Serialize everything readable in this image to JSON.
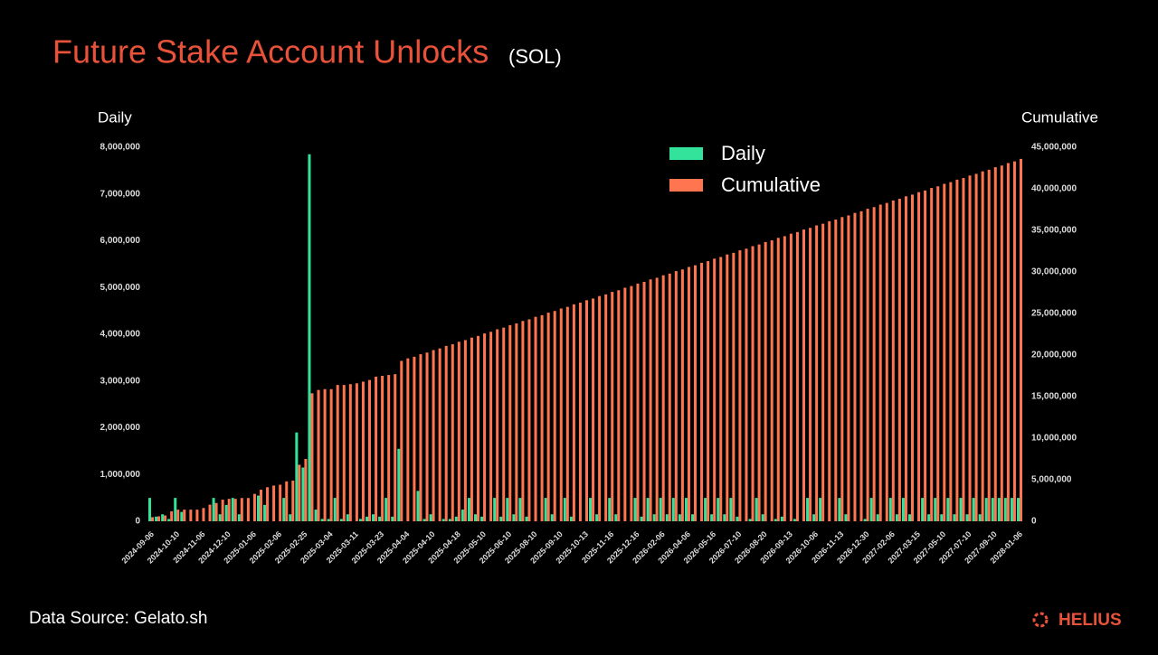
{
  "chart_data": {
    "type": "bar",
    "title": "Future Stake Account Unlocks",
    "subtitle": "(SOL)",
    "y_label": "Daily",
    "y2_label": "Cumulative",
    "source": "Data Source: Gelato.sh",
    "brand": "HELIUS",
    "categories": [
      "2024-09-06",
      null,
      null,
      null,
      "2024-10-10",
      null,
      null,
      null,
      "2024-11-06",
      null,
      null,
      null,
      "2024-12-10",
      null,
      null,
      null,
      "2025-01-06",
      null,
      null,
      null,
      "2025-02-06",
      null,
      null,
      null,
      "2025-02-25",
      null,
      null,
      null,
      "2025-03-04",
      null,
      null,
      null,
      "2025-03-11",
      null,
      null,
      null,
      "2025-03-23",
      null,
      null,
      null,
      "2025-04-04",
      null,
      null,
      null,
      "2025-04-10",
      null,
      null,
      null,
      "2025-04-18",
      null,
      null,
      null,
      "2025-05-10",
      null,
      null,
      null,
      "2025-06-10",
      null,
      null,
      null,
      "2025-08-10",
      null,
      null,
      null,
      "2025-09-10",
      null,
      null,
      null,
      "2025-10-13",
      null,
      null,
      null,
      "2025-11-16",
      null,
      null,
      null,
      "2025-12-16",
      null,
      null,
      null,
      "2026-02-06",
      null,
      null,
      null,
      "2026-04-06",
      null,
      null,
      null,
      "2026-05-16",
      null,
      null,
      null,
      "2026-07-10",
      null,
      null,
      null,
      "2026-08-20",
      null,
      null,
      null,
      "2026-09-13",
      null,
      null,
      null,
      "2026-10-06",
      null,
      null,
      null,
      "2026-11-13",
      null,
      null,
      null,
      "2026-12-30",
      null,
      null,
      null,
      "2027-02-06",
      null,
      null,
      null,
      "2027-03-15",
      null,
      null,
      null,
      "2027-05-10",
      null,
      null,
      null,
      "2027-07-10",
      null,
      null,
      null,
      "2027-09-10",
      null,
      null,
      null,
      "2028-01-06"
    ],
    "series": [
      {
        "name": "Daily",
        "color": "#33e39c",
        "values": [
          500000,
          100000,
          150000,
          50000,
          500000,
          200000,
          0,
          0,
          0,
          0,
          500000,
          150000,
          350000,
          500000,
          150000,
          0,
          0,
          550000,
          350000,
          0,
          0,
          500000,
          150000,
          1900000,
          1150000,
          7850000,
          250000,
          50000,
          50000,
          500000,
          50000,
          150000,
          0,
          50000,
          100000,
          150000,
          100000,
          500000,
          100000,
          1550000,
          0,
          0,
          650000,
          50000,
          150000,
          0,
          50000,
          50000,
          100000,
          250000,
          500000,
          150000,
          100000,
          0,
          500000,
          100000,
          500000,
          150000,
          500000,
          100000,
          0,
          0,
          500000,
          150000,
          0,
          500000,
          100000,
          0,
          0,
          500000,
          150000,
          0,
          500000,
          150000,
          0,
          0,
          500000,
          100000,
          500000,
          150000,
          500000,
          150000,
          500000,
          150000,
          500000,
          150000,
          0,
          500000,
          150000,
          500000,
          150000,
          500000,
          100000,
          0,
          50000,
          500000,
          150000,
          0,
          50000,
          100000,
          0,
          50000,
          0,
          500000,
          150000,
          500000,
          0,
          0,
          500000,
          150000,
          0,
          0,
          50000,
          500000,
          150000,
          0,
          500000,
          150000,
          500000,
          150000,
          0,
          500000,
          150000,
          500000,
          150000,
          500000,
          150000,
          500000,
          150000,
          500000,
          150000,
          500000,
          500000,
          500000,
          500000,
          500000,
          500000
        ]
      },
      {
        "name": "Cumulative",
        "color": "#ff7550",
        "axis": "y2",
        "values": [
          500000,
          600000,
          700000,
          1200000,
          1400000,
          1400000,
          1400000,
          1400000,
          1600000,
          2000000,
          2200000,
          2600000,
          2700000,
          2700000,
          2800000,
          2800000,
          3300000,
          3800000,
          4100000,
          4300000,
          4400000,
          4800000,
          4900000,
          6800000,
          7500000,
          15400000,
          15800000,
          15900000,
          15900000,
          16400000,
          16400000,
          16500000,
          16600000,
          16800000,
          17000000,
          17400000,
          17500000,
          17600000,
          17700000,
          19300000,
          19600000,
          19800000,
          20100000,
          20300000,
          20600000,
          20800000,
          21100000,
          21300000,
          21600000,
          21800000,
          22100000,
          22300000,
          22600000,
          22800000,
          23100000,
          23300000,
          23600000,
          23800000,
          24100000,
          24300000,
          24600000,
          24800000,
          25100000,
          25300000,
          25600000,
          25800000,
          26100000,
          26300000,
          26600000,
          26800000,
          27100000,
          27300000,
          27600000,
          27800000,
          28100000,
          28300000,
          28600000,
          28800000,
          29100000,
          29300000,
          29600000,
          29800000,
          30100000,
          30300000,
          30600000,
          30800000,
          31100000,
          31300000,
          31600000,
          31800000,
          32100000,
          32300000,
          32600000,
          32800000,
          33100000,
          33300000,
          33600000,
          33800000,
          34100000,
          34300000,
          34600000,
          34800000,
          35100000,
          35300000,
          35600000,
          35800000,
          36100000,
          36300000,
          36600000,
          36800000,
          37100000,
          37300000,
          37600000,
          37800000,
          38100000,
          38300000,
          38600000,
          38800000,
          39100000,
          39300000,
          39600000,
          39800000,
          40100000,
          40300000,
          40600000,
          40800000,
          41100000,
          41300000,
          41600000,
          41800000,
          42100000,
          42300000,
          42600000,
          42800000,
          43100000,
          43300000,
          43600000
        ]
      }
    ],
    "ylim": [
      0,
      8000000
    ],
    "yticks": [
      0,
      {
        "value": 1000000,
        "label": "1,000,000"
      },
      {
        "value": 2000000,
        "label": "2,000,000"
      },
      {
        "value": 3000000,
        "label": "3,000,000"
      },
      {
        "value": 4000000,
        "label": "4,000,000"
      },
      {
        "value": 5000000,
        "label": "5,000,000"
      },
      {
        "value": 6000000,
        "label": "6,000,000"
      },
      {
        "value": 7000000,
        "label": "7,000,000"
      },
      {
        "value": 8000000,
        "label": "8,000,000"
      }
    ],
    "y2lim": [
      0,
      45000000
    ],
    "y2ticks": [
      0,
      {
        "value": 5000000,
        "label": "5,000,000"
      },
      {
        "value": 10000000,
        "label": "10,000,000"
      },
      {
        "value": 15000000,
        "label": "15,000,000"
      },
      {
        "value": 20000000,
        "label": "20,000,000"
      },
      {
        "value": 25000000,
        "label": "25,000,000"
      },
      {
        "value": 30000000,
        "label": "30,000,000"
      },
      {
        "value": 35000000,
        "label": "35,000,000"
      },
      {
        "value": 40000000,
        "label": "40,000,000"
      },
      {
        "value": 45000000,
        "label": "45,000,000"
      }
    ],
    "grid": false
  }
}
